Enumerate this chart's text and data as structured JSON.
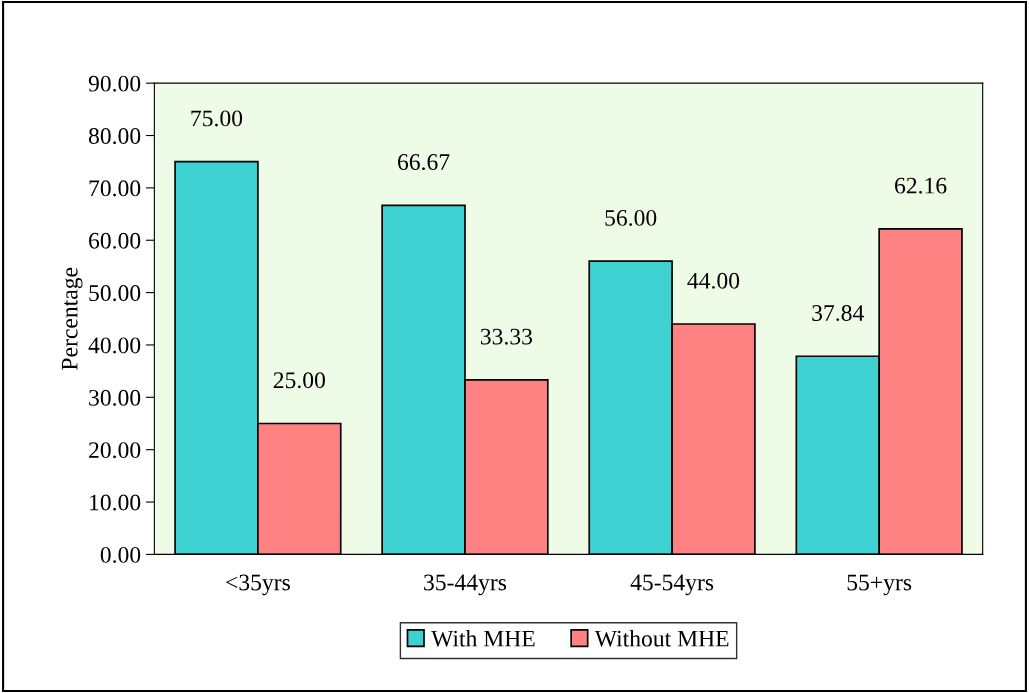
{
  "chart_data": {
    "type": "bar",
    "ylabel": "Percentage",
    "categories": [
      "<35yrs",
      "35-44yrs",
      "45-54yrs",
      "55+yrs"
    ],
    "series": [
      {
        "name": "With MHE",
        "color": "#3dd1d1",
        "values": [
          75.0,
          66.67,
          56.0,
          37.84
        ],
        "value_labels": [
          "75.00",
          "66.67",
          "56.00",
          "37.84"
        ]
      },
      {
        "name": "Without MHE",
        "color": "#ff8282",
        "values": [
          25.0,
          33.33,
          44.0,
          62.16
        ],
        "value_labels": [
          "25.00",
          "33.33",
          "44.00",
          "62.16"
        ]
      }
    ],
    "ylim": [
      0,
      90
    ],
    "yticks": [
      {
        "value": 0,
        "label": "0.00"
      },
      {
        "value": 10,
        "label": "10.00"
      },
      {
        "value": 20,
        "label": "20.00"
      },
      {
        "value": 30,
        "label": "30.00"
      },
      {
        "value": 40,
        "label": "40.00"
      },
      {
        "value": 50,
        "label": "50.00"
      },
      {
        "value": 60,
        "label": "60.00"
      },
      {
        "value": 70,
        "label": "70.00"
      },
      {
        "value": 80,
        "label": "80.00"
      },
      {
        "value": 90,
        "label": "90.00"
      }
    ],
    "grid": false,
    "legend": "bottom"
  }
}
